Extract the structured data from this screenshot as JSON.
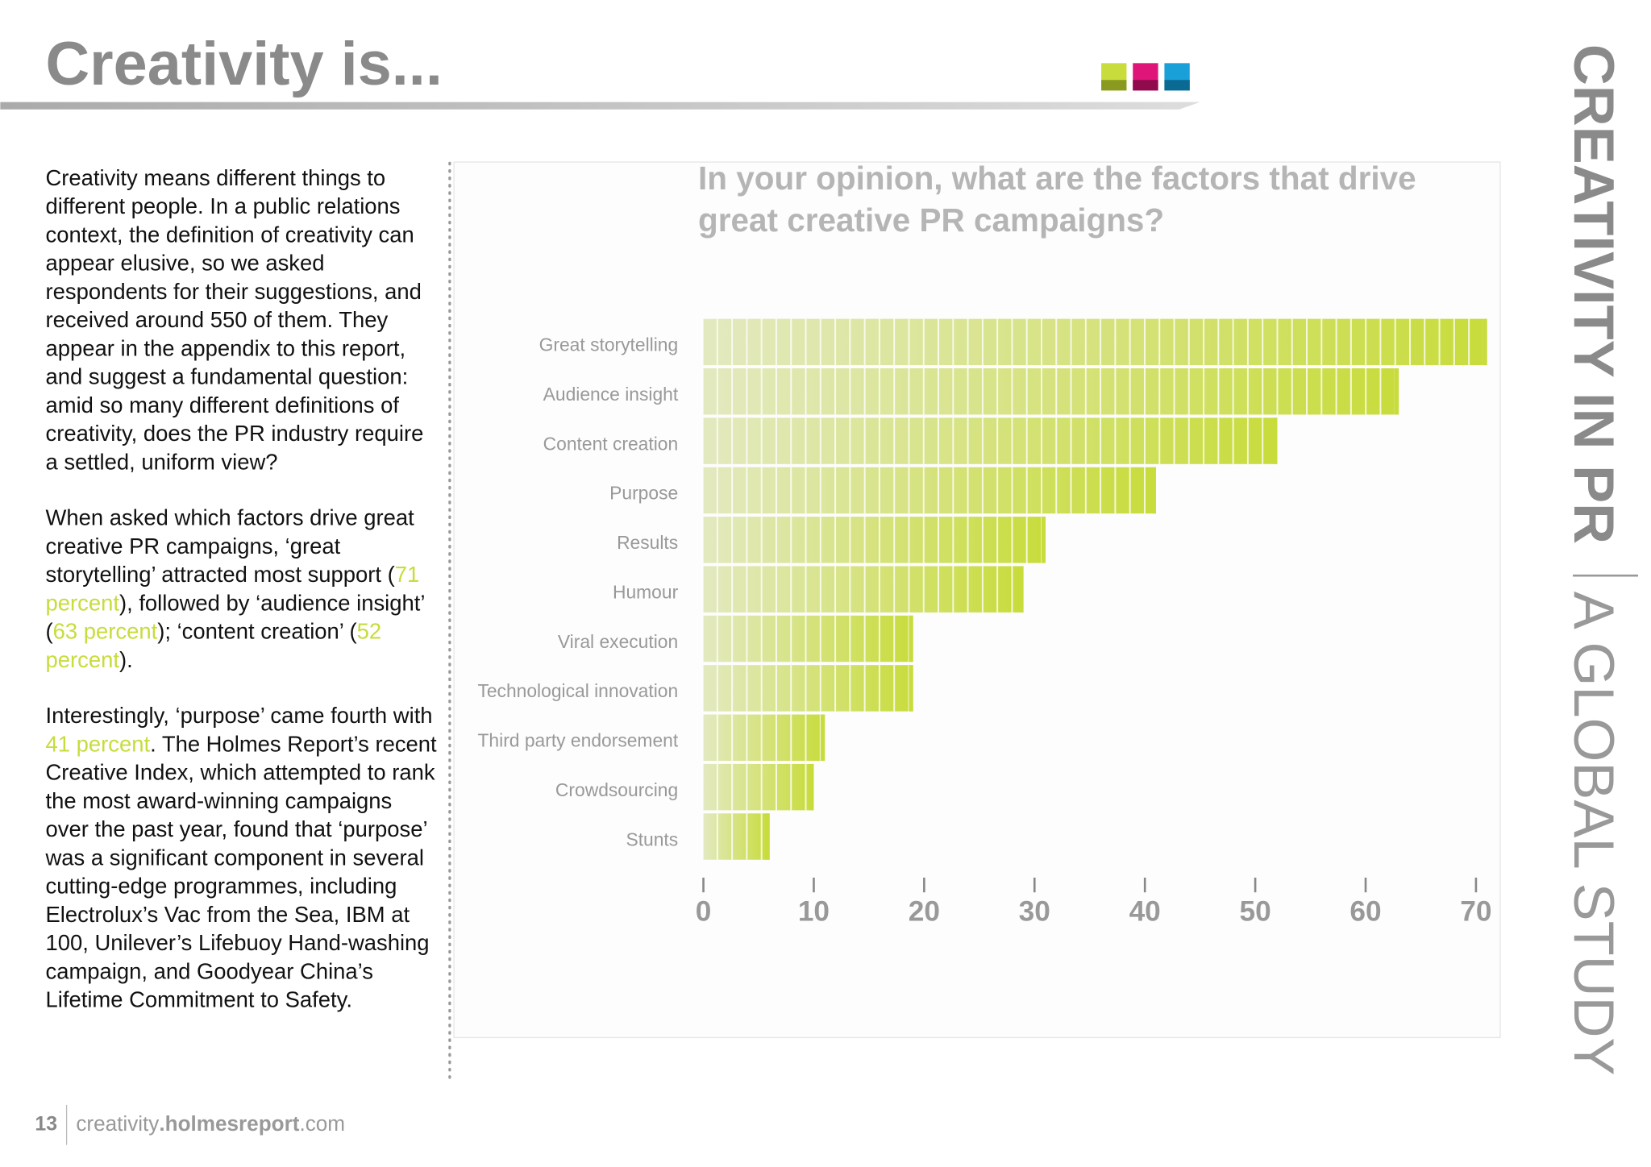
{
  "header": {
    "title": "Creativity is..."
  },
  "body": {
    "paragraphs": [
      [
        "Creativity means different things to different people. In a public relations context, the definition of creativity can appear elusive, so we asked respondents for their suggestions, and received around 550 of them. They appear in the appendix to this report, and suggest a fundamental question: amid so many different definitions of creativity, does the PR industry require a settled, uniform view?"
      ],
      [
        "When asked which factors drive great creative PR campaigns, ‘great storytelling’ attracted most support (",
        "71 percent",
        "), followed by ‘audience insight’ (",
        "63 percent",
        "); ‘content creation’ (",
        "52 percent",
        ")."
      ],
      [
        "Interestingly, ‘purpose’ came fourth with ",
        "41 percent",
        ". The Holmes Report’s recent Creative Index, which attempted to rank the most award-winning campaigns over the past year, found that ‘purpose’ was a significant component in several cutting-edge programmes, including Electrolux’s Vac from the Sea,  IBM at 100, Unilever’s Lifebuoy Hand-washing campaign, and Goodyear China’s Lifetime Commitment to Safety."
      ]
    ]
  },
  "footer": {
    "page": "13",
    "site": [
      "creativity",
      ".holmesreport",
      ".com"
    ]
  },
  "side": {
    "title": "CREATIVITY IN PR",
    "subtitle": "A GLOBAL STUDY"
  },
  "chart_data": {
    "type": "hbar",
    "title": "In your opinion, what are the factors that drive great creative PR campaigns?",
    "categories": [
      "Great storytelling",
      "Audience insight",
      "Content creation",
      "Purpose",
      "Results",
      "Humour",
      "Viral execution",
      "Technological innovation",
      "Third party endorsement",
      "Crowdsourcing",
      "Stunts"
    ],
    "values": [
      71,
      63,
      52,
      41,
      31,
      29,
      19,
      19,
      11,
      10,
      6
    ],
    "color": "#c8dc3c",
    "xlim": [
      0,
      70
    ],
    "xticks": [
      0,
      10,
      20,
      30,
      40,
      50,
      60,
      70
    ]
  }
}
